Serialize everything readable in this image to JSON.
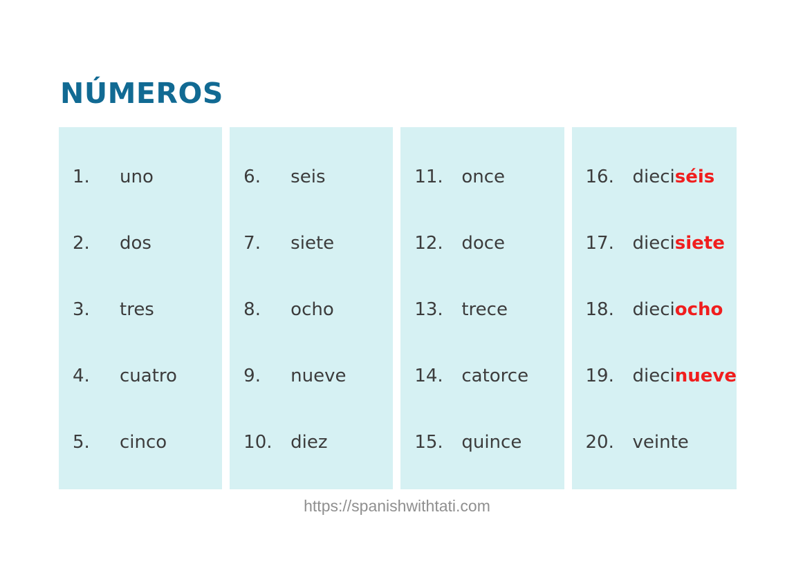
{
  "title": "NÚMEROS",
  "footer": {
    "url": "https://spanishwithtati.com"
  },
  "colors": {
    "title_accent": "#116a93",
    "card_background": "#d6f1f3",
    "body_text": "#3c3c3c",
    "highlight_red": "#f01e1e",
    "footer_gray": "#8f8f8f",
    "page_background": "#ffffff"
  },
  "columns": [
    {
      "items": [
        {
          "num": "1.",
          "base": "uno",
          "highlight": ""
        },
        {
          "num": "2.",
          "base": "dos",
          "highlight": ""
        },
        {
          "num": "3.",
          "base": "tres",
          "highlight": ""
        },
        {
          "num": "4.",
          "base": "cuatro",
          "highlight": ""
        },
        {
          "num": "5.",
          "base": "cinco",
          "highlight": ""
        }
      ]
    },
    {
      "items": [
        {
          "num": "6.",
          "base": "seis",
          "highlight": ""
        },
        {
          "num": "7.",
          "base": "siete",
          "highlight": ""
        },
        {
          "num": "8.",
          "base": "ocho",
          "highlight": ""
        },
        {
          "num": "9.",
          "base": "nueve",
          "highlight": ""
        },
        {
          "num": "10.",
          "base": "diez",
          "highlight": ""
        }
      ]
    },
    {
      "items": [
        {
          "num": "11.",
          "base": "once",
          "highlight": ""
        },
        {
          "num": "12.",
          "base": "doce",
          "highlight": ""
        },
        {
          "num": "13.",
          "base": "trece",
          "highlight": ""
        },
        {
          "num": "14.",
          "base": "catorce",
          "highlight": ""
        },
        {
          "num": "15.",
          "base": "quince",
          "highlight": ""
        }
      ]
    },
    {
      "items": [
        {
          "num": "16.",
          "base": "dieci",
          "highlight": "séis"
        },
        {
          "num": "17.",
          "base": "dieci",
          "highlight": "siete"
        },
        {
          "num": "18.",
          "base": "dieci",
          "highlight": "ocho"
        },
        {
          "num": "19.",
          "base": "dieci",
          "highlight": "nueve"
        },
        {
          "num": "20.",
          "base": "veinte",
          "highlight": ""
        }
      ]
    }
  ]
}
